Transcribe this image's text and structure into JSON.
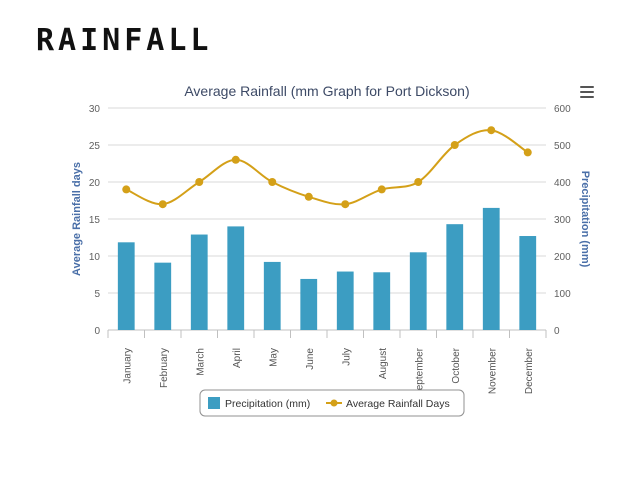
{
  "slide_title": "RAINFALL",
  "chart_data": {
    "type": "bar+line",
    "title": "Average Rainfall (mm Graph for Port Dickson)",
    "categories": [
      "January",
      "February",
      "March",
      "April",
      "May",
      "June",
      "July",
      "August",
      "September",
      "October",
      "November",
      "December"
    ],
    "series": [
      {
        "name": "Precipitation (mm)",
        "type": "bar",
        "axis": "right",
        "color": "#3c9dc2",
        "values": [
          237,
          182,
          258,
          280,
          184,
          138,
          158,
          156,
          210,
          286,
          330,
          254
        ]
      },
      {
        "name": "Average Rainfall Days",
        "type": "line",
        "axis": "left",
        "color": "#d4a018",
        "values": [
          19,
          17,
          20,
          23,
          20,
          18,
          17,
          19,
          20,
          25,
          27,
          24
        ]
      }
    ],
    "left_axis": {
      "label": "Average Rainfall days",
      "min": 0,
      "max": 30,
      "ticks": [
        0,
        5,
        10,
        15,
        20,
        25,
        30
      ]
    },
    "right_axis": {
      "label": "Precipitation (mm)",
      "min": 0,
      "max": 600,
      "ticks": [
        0,
        100,
        200,
        300,
        400,
        500,
        600
      ]
    },
    "grid": true,
    "legend_position": "bottom-center"
  },
  "menu_icon": "hamburger-menu-icon"
}
